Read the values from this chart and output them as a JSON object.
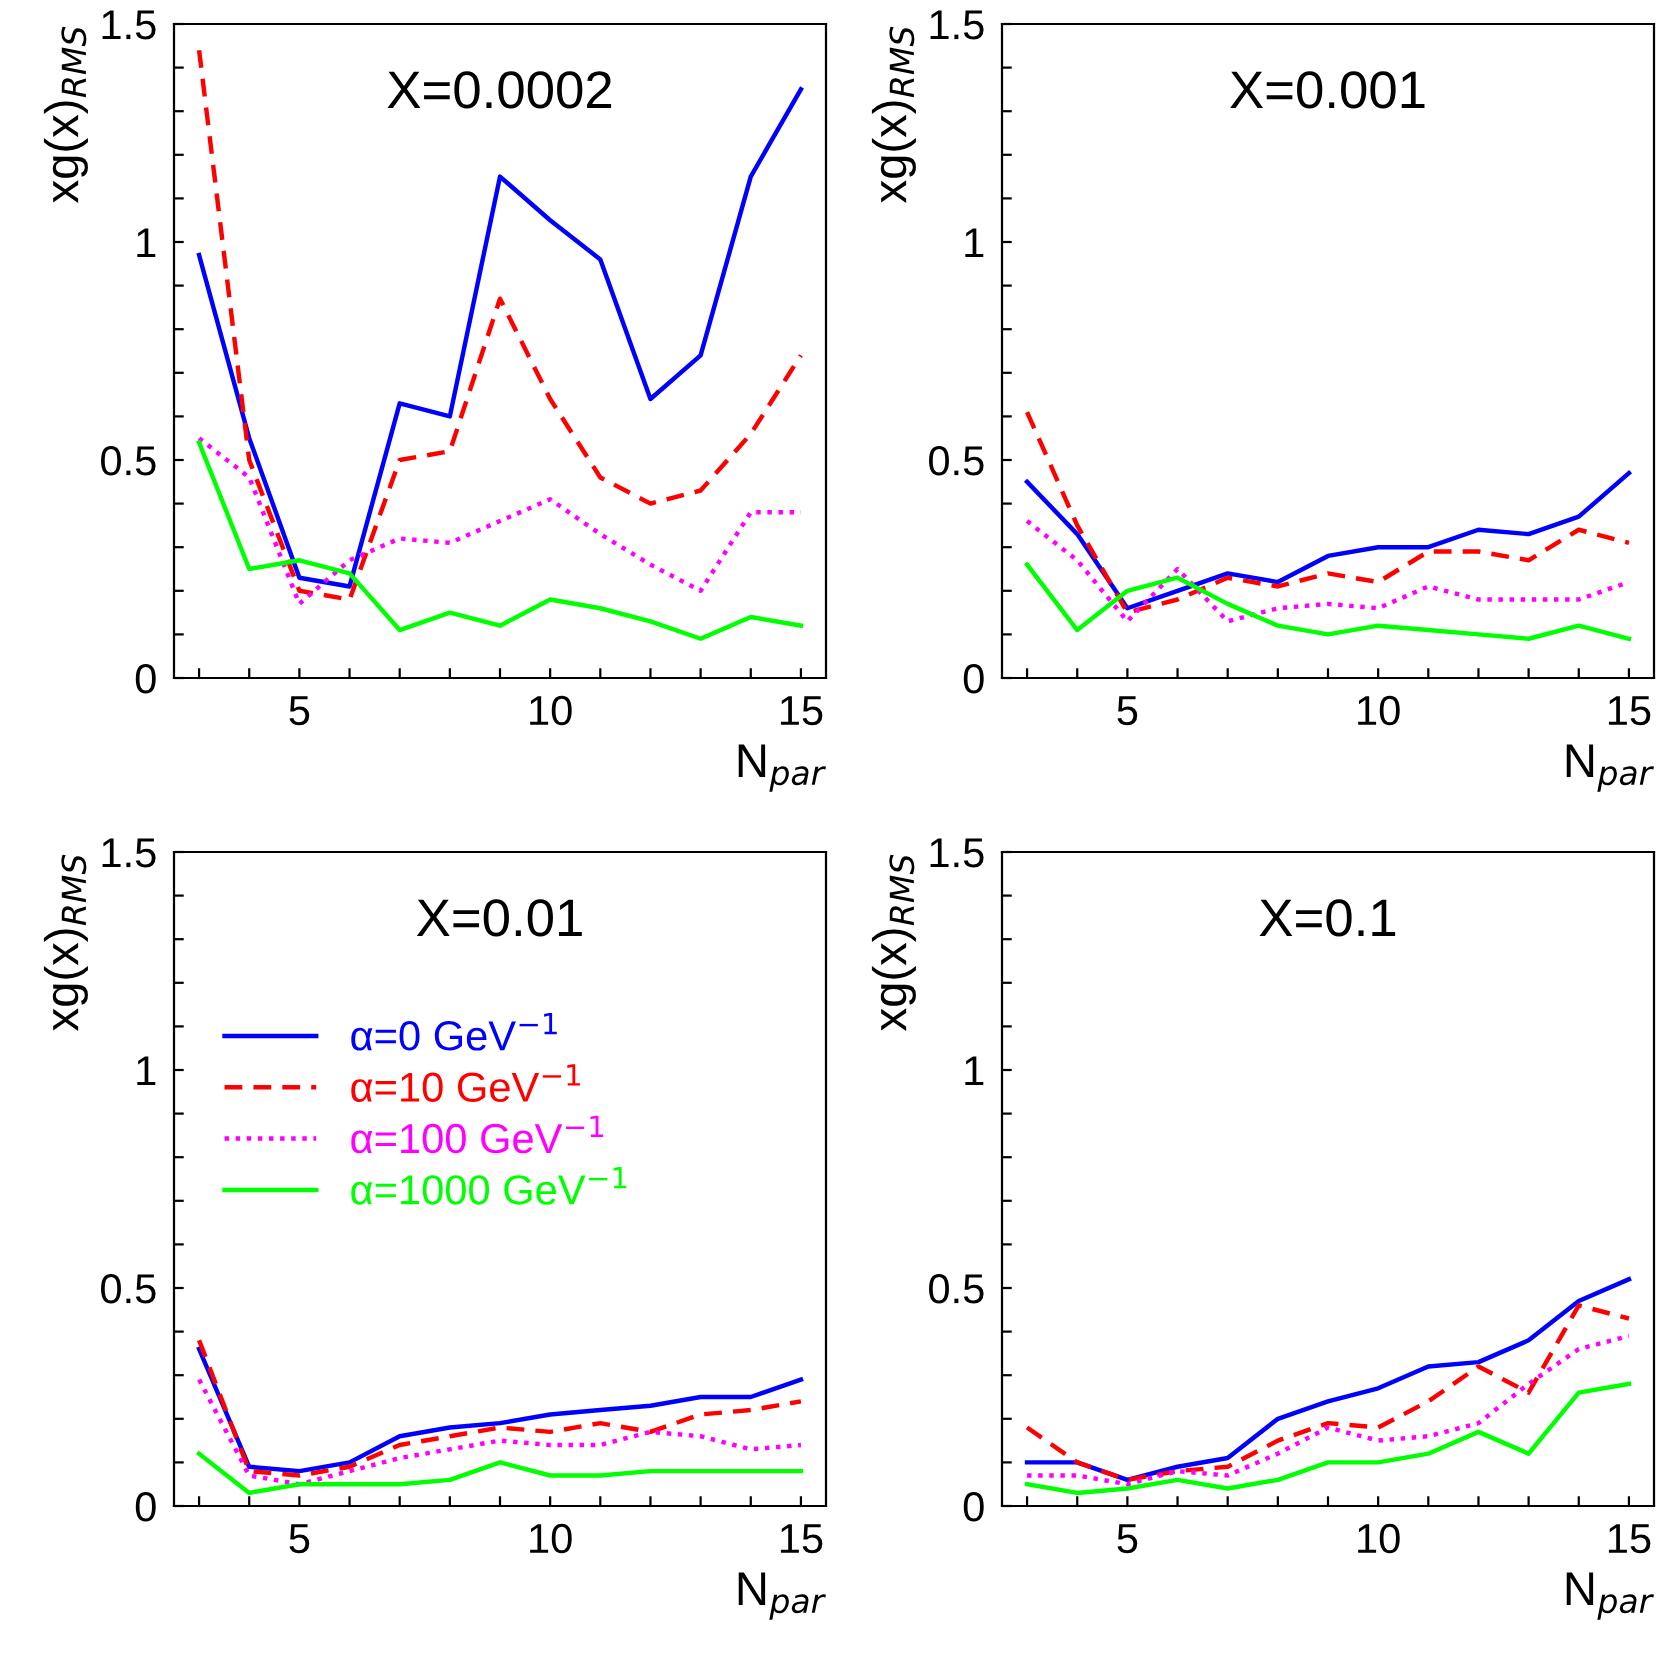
{
  "chart_data": [
    {
      "type": "line",
      "title": "X=0.0002",
      "xlabel": "N$_{par}$",
      "ylabel": "xg(x)$_{RMS}$",
      "x": [
        3,
        4,
        5,
        6,
        7,
        8,
        9,
        10,
        11,
        12,
        13,
        14,
        15
      ],
      "xlim": [
        2.5,
        15.5
      ],
      "ylim": [
        0,
        1.5
      ],
      "xticks": [
        {
          "value": 3,
          "label": null
        },
        {
          "value": 4,
          "label": null
        },
        5,
        {
          "value": 6,
          "label": null
        },
        {
          "value": 7,
          "label": null
        },
        {
          "value": 8,
          "label": null
        },
        {
          "value": 9,
          "label": null
        },
        10,
        {
          "value": 11,
          "label": null
        },
        {
          "value": 12,
          "label": null
        },
        {
          "value": 13,
          "label": null
        },
        {
          "value": 14,
          "label": null
        },
        15
      ],
      "yticks": [
        0,
        {
          "value": 0.1,
          "label": null
        },
        {
          "value": 0.2,
          "label": null
        },
        {
          "value": 0.3,
          "label": null
        },
        {
          "value": 0.4,
          "label": null
        },
        0.5,
        {
          "value": 0.6,
          "label": null
        },
        {
          "value": 0.7,
          "label": null
        },
        {
          "value": 0.8,
          "label": null
        },
        {
          "value": 0.9,
          "label": null
        },
        1,
        {
          "value": 1.1,
          "label": null
        },
        {
          "value": 1.2,
          "label": null
        },
        {
          "value": 1.3,
          "label": null
        },
        {
          "value": 1.4,
          "label": null
        },
        1.5
      ],
      "grid": false,
      "legend": false,
      "series": [
        {
          "color": "#0000ff",
          "line_style": "solid",
          "values": [
            0.97,
            0.55,
            0.23,
            0.21,
            0.63,
            0.6,
            1.15,
            1.05,
            0.96,
            0.64,
            0.74,
            1.15,
            1.35
          ]
        },
        {
          "color": "#ff0000",
          "line_style": "dashed",
          "values": [
            1.44,
            0.5,
            0.2,
            0.18,
            0.5,
            0.52,
            0.87,
            0.64,
            0.46,
            0.4,
            0.43,
            0.56,
            0.74
          ]
        },
        {
          "color": "#ff00ff",
          "line_style": "dotted",
          "values": [
            0.55,
            0.46,
            0.17,
            0.27,
            0.32,
            0.31,
            0.36,
            0.41,
            0.33,
            0.26,
            0.2,
            0.38,
            0.38
          ]
        },
        {
          "color": "#00ff00",
          "line_style": "solid",
          "values": [
            0.54,
            0.25,
            0.27,
            0.24,
            0.11,
            0.15,
            0.12,
            0.18,
            0.16,
            0.13,
            0.09,
            0.14,
            0.12
          ]
        }
      ]
    },
    {
      "type": "line",
      "title": "X=0.001",
      "xlabel": "N$_{par}$",
      "ylabel": "xg(x)$_{RMS}$",
      "x": [
        3,
        4,
        5,
        6,
        7,
        8,
        9,
        10,
        11,
        12,
        13,
        14,
        15
      ],
      "xlim": [
        2.5,
        15.5
      ],
      "ylim": [
        0,
        1.5
      ],
      "xticks": [
        {
          "value": 3,
          "label": null
        },
        {
          "value": 4,
          "label": null
        },
        5,
        {
          "value": 6,
          "label": null
        },
        {
          "value": 7,
          "label": null
        },
        {
          "value": 8,
          "label": null
        },
        {
          "value": 9,
          "label": null
        },
        10,
        {
          "value": 11,
          "label": null
        },
        {
          "value": 12,
          "label": null
        },
        {
          "value": 13,
          "label": null
        },
        {
          "value": 14,
          "label": null
        },
        15
      ],
      "yticks": [
        0,
        {
          "value": 0.1,
          "label": null
        },
        {
          "value": 0.2,
          "label": null
        },
        {
          "value": 0.3,
          "label": null
        },
        {
          "value": 0.4,
          "label": null
        },
        0.5,
        {
          "value": 0.6,
          "label": null
        },
        {
          "value": 0.7,
          "label": null
        },
        {
          "value": 0.8,
          "label": null
        },
        {
          "value": 0.9,
          "label": null
        },
        1,
        {
          "value": 1.1,
          "label": null
        },
        {
          "value": 1.2,
          "label": null
        },
        {
          "value": 1.3,
          "label": null
        },
        {
          "value": 1.4,
          "label": null
        },
        1.5
      ],
      "grid": false,
      "legend": false,
      "series": [
        {
          "color": "#0000ff",
          "line_style": "solid",
          "values": [
            0.45,
            0.33,
            0.16,
            0.2,
            0.24,
            0.22,
            0.28,
            0.3,
            0.3,
            0.34,
            0.33,
            0.37,
            0.47
          ]
        },
        {
          "color": "#ff0000",
          "line_style": "dashed",
          "values": [
            0.61,
            0.35,
            0.15,
            0.18,
            0.23,
            0.21,
            0.24,
            0.22,
            0.29,
            0.29,
            0.27,
            0.34,
            0.31
          ]
        },
        {
          "color": "#ff00ff",
          "line_style": "dotted",
          "values": [
            0.36,
            0.27,
            0.13,
            0.25,
            0.13,
            0.16,
            0.17,
            0.16,
            0.21,
            0.18,
            0.18,
            0.18,
            0.22
          ]
        },
        {
          "color": "#00ff00",
          "line_style": "solid",
          "values": [
            0.26,
            0.11,
            0.2,
            0.23,
            0.17,
            0.12,
            0.1,
            0.12,
            0.11,
            0.1,
            0.09,
            0.12,
            0.09
          ]
        }
      ]
    },
    {
      "type": "line",
      "title": "X=0.01",
      "xlabel": "N$_{par}$",
      "ylabel": "xg(x)$_{RMS}$",
      "x": [
        3,
        4,
        5,
        6,
        7,
        8,
        9,
        10,
        11,
        12,
        13,
        14,
        15
      ],
      "xlim": [
        2.5,
        15.5
      ],
      "ylim": [
        0,
        1.5
      ],
      "xticks": [
        {
          "value": 3,
          "label": null
        },
        {
          "value": 4,
          "label": null
        },
        5,
        {
          "value": 6,
          "label": null
        },
        {
          "value": 7,
          "label": null
        },
        {
          "value": 8,
          "label": null
        },
        {
          "value": 9,
          "label": null
        },
        10,
        {
          "value": 11,
          "label": null
        },
        {
          "value": 12,
          "label": null
        },
        {
          "value": 13,
          "label": null
        },
        {
          "value": 14,
          "label": null
        },
        15
      ],
      "yticks": [
        0,
        {
          "value": 0.1,
          "label": null
        },
        {
          "value": 0.2,
          "label": null
        },
        {
          "value": 0.3,
          "label": null
        },
        {
          "value": 0.4,
          "label": null
        },
        0.5,
        {
          "value": 0.6,
          "label": null
        },
        {
          "value": 0.7,
          "label": null
        },
        {
          "value": 0.8,
          "label": null
        },
        {
          "value": 0.9,
          "label": null
        },
        1,
        {
          "value": 1.1,
          "label": null
        },
        {
          "value": 1.2,
          "label": null
        },
        {
          "value": 1.3,
          "label": null
        },
        {
          "value": 1.4,
          "label": null
        },
        1.5
      ],
      "grid": false,
      "legend": "top left",
      "series": [
        {
          "name": "α=0 GeV$^{−1}$",
          "color": "#0000ff",
          "line_style": "solid",
          "values": [
            0.36,
            0.09,
            0.08,
            0.1,
            0.16,
            0.18,
            0.19,
            0.21,
            0.22,
            0.23,
            0.25,
            0.25,
            0.29
          ]
        },
        {
          "name": "α=10 GeV$^{−1}$",
          "color": "#ff0000",
          "line_style": "dashed",
          "values": [
            0.38,
            0.08,
            0.07,
            0.09,
            0.14,
            0.16,
            0.18,
            0.17,
            0.19,
            0.17,
            0.21,
            0.22,
            0.24
          ]
        },
        {
          "name": "α=100 GeV$^{−1}$",
          "color": "#ff00ff",
          "line_style": "dotted",
          "values": [
            0.29,
            0.07,
            0.05,
            0.08,
            0.11,
            0.13,
            0.15,
            0.14,
            0.14,
            0.17,
            0.16,
            0.13,
            0.14
          ]
        },
        {
          "name": "α=1000 GeV$^{−1}$",
          "color": "#00ff00",
          "line_style": "solid",
          "values": [
            0.12,
            0.03,
            0.05,
            0.05,
            0.05,
            0.06,
            0.1,
            0.07,
            0.07,
            0.08,
            0.08,
            0.08,
            0.08
          ]
        }
      ]
    },
    {
      "type": "line",
      "title": "X=0.1",
      "xlabel": "N$_{par}$",
      "ylabel": "xg(x)$_{RMS}$",
      "x": [
        3,
        4,
        5,
        6,
        7,
        8,
        9,
        10,
        11,
        12,
        13,
        14,
        15
      ],
      "xlim": [
        2.5,
        15.5
      ],
      "ylim": [
        0,
        1.5
      ],
      "xticks": [
        {
          "value": 3,
          "label": null
        },
        {
          "value": 4,
          "label": null
        },
        5,
        {
          "value": 6,
          "label": null
        },
        {
          "value": 7,
          "label": null
        },
        {
          "value": 8,
          "label": null
        },
        {
          "value": 9,
          "label": null
        },
        10,
        {
          "value": 11,
          "label": null
        },
        {
          "value": 12,
          "label": null
        },
        {
          "value": 13,
          "label": null
        },
        {
          "value": 14,
          "label": null
        },
        15
      ],
      "yticks": [
        0,
        {
          "value": 0.1,
          "label": null
        },
        {
          "value": 0.2,
          "label": null
        },
        {
          "value": 0.3,
          "label": null
        },
        {
          "value": 0.4,
          "label": null
        },
        0.5,
        {
          "value": 0.6,
          "label": null
        },
        {
          "value": 0.7,
          "label": null
        },
        {
          "value": 0.8,
          "label": null
        },
        {
          "value": 0.9,
          "label": null
        },
        1,
        {
          "value": 1.1,
          "label": null
        },
        {
          "value": 1.2,
          "label": null
        },
        {
          "value": 1.3,
          "label": null
        },
        {
          "value": 1.4,
          "label": null
        },
        1.5
      ],
      "grid": false,
      "legend": false,
      "series": [
        {
          "color": "#0000ff",
          "line_style": "solid",
          "values": [
            0.1,
            0.1,
            0.06,
            0.09,
            0.11,
            0.2,
            0.24,
            0.27,
            0.32,
            0.33,
            0.38,
            0.47,
            0.52
          ]
        },
        {
          "color": "#ff0000",
          "line_style": "dashed",
          "values": [
            0.18,
            0.1,
            0.06,
            0.08,
            0.09,
            0.15,
            0.19,
            0.18,
            0.24,
            0.32,
            0.26,
            0.46,
            0.43
          ]
        },
        {
          "color": "#ff00ff",
          "line_style": "dotted",
          "values": [
            0.07,
            0.07,
            0.05,
            0.08,
            0.07,
            0.12,
            0.18,
            0.15,
            0.16,
            0.19,
            0.28,
            0.36,
            0.39
          ]
        },
        {
          "color": "#00ff00",
          "line_style": "solid",
          "values": [
            0.05,
            0.03,
            0.04,
            0.06,
            0.04,
            0.06,
            0.1,
            0.1,
            0.12,
            0.17,
            0.12,
            0.26,
            0.28
          ]
        }
      ]
    }
  ]
}
